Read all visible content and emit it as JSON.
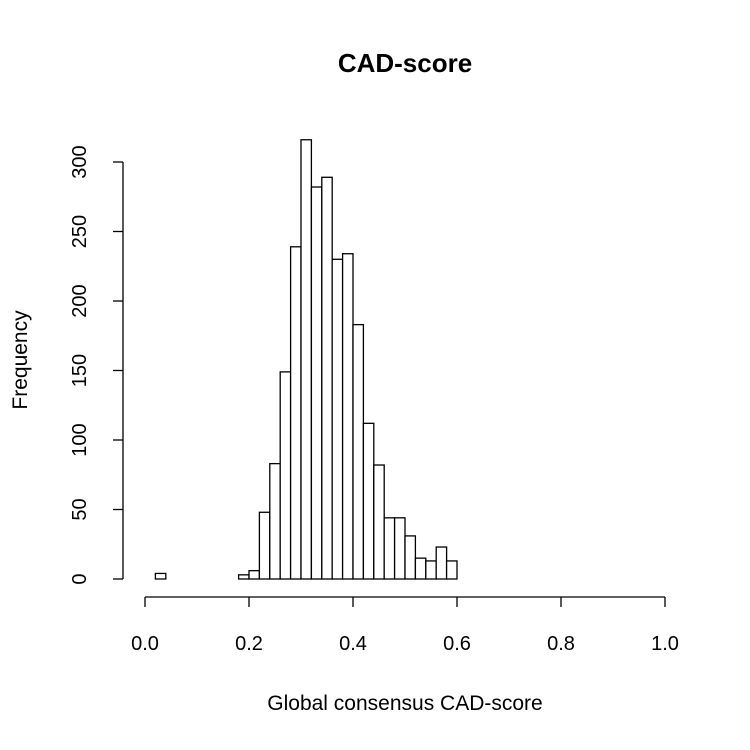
{
  "chart_data": {
    "type": "bar",
    "title": "CAD-score",
    "xlabel": "Global consensus CAD-score",
    "ylabel": "Frequency",
    "xlim": [
      0.0,
      1.0
    ],
    "ylim": [
      0,
      300
    ],
    "grid": false,
    "x_ticks": [
      "0.0",
      "0.2",
      "0.4",
      "0.6",
      "0.8",
      "1.0"
    ],
    "y_ticks": [
      "0",
      "50",
      "100",
      "150",
      "200",
      "250",
      "300"
    ],
    "bin_width": 0.02,
    "bin_edges": [
      0.0,
      0.02,
      0.04,
      0.06,
      0.08,
      0.1,
      0.12,
      0.14,
      0.16,
      0.18,
      0.2,
      0.22,
      0.24,
      0.26,
      0.28,
      0.3,
      0.32,
      0.34,
      0.36,
      0.38,
      0.4,
      0.42,
      0.44,
      0.46,
      0.48,
      0.5,
      0.52,
      0.54,
      0.56,
      0.58,
      0.6,
      0.62,
      0.64,
      0.66,
      0.68,
      0.7,
      0.72,
      0.74,
      0.76,
      0.78,
      0.8,
      0.82,
      0.84,
      0.86,
      0.88,
      0.9,
      0.92,
      0.94,
      0.96,
      0.98,
      1.0
    ],
    "values": [
      0,
      4,
      0,
      0,
      0,
      0,
      0,
      0,
      0,
      3,
      6,
      48,
      83,
      149,
      239,
      316,
      282,
      289,
      230,
      234,
      183,
      112,
      82,
      44,
      44,
      31,
      15,
      13,
      23,
      13,
      0,
      0,
      0,
      0,
      0,
      0,
      0,
      0,
      0,
      0,
      0,
      0,
      0,
      0,
      0,
      0,
      0,
      0,
      0,
      0
    ]
  }
}
